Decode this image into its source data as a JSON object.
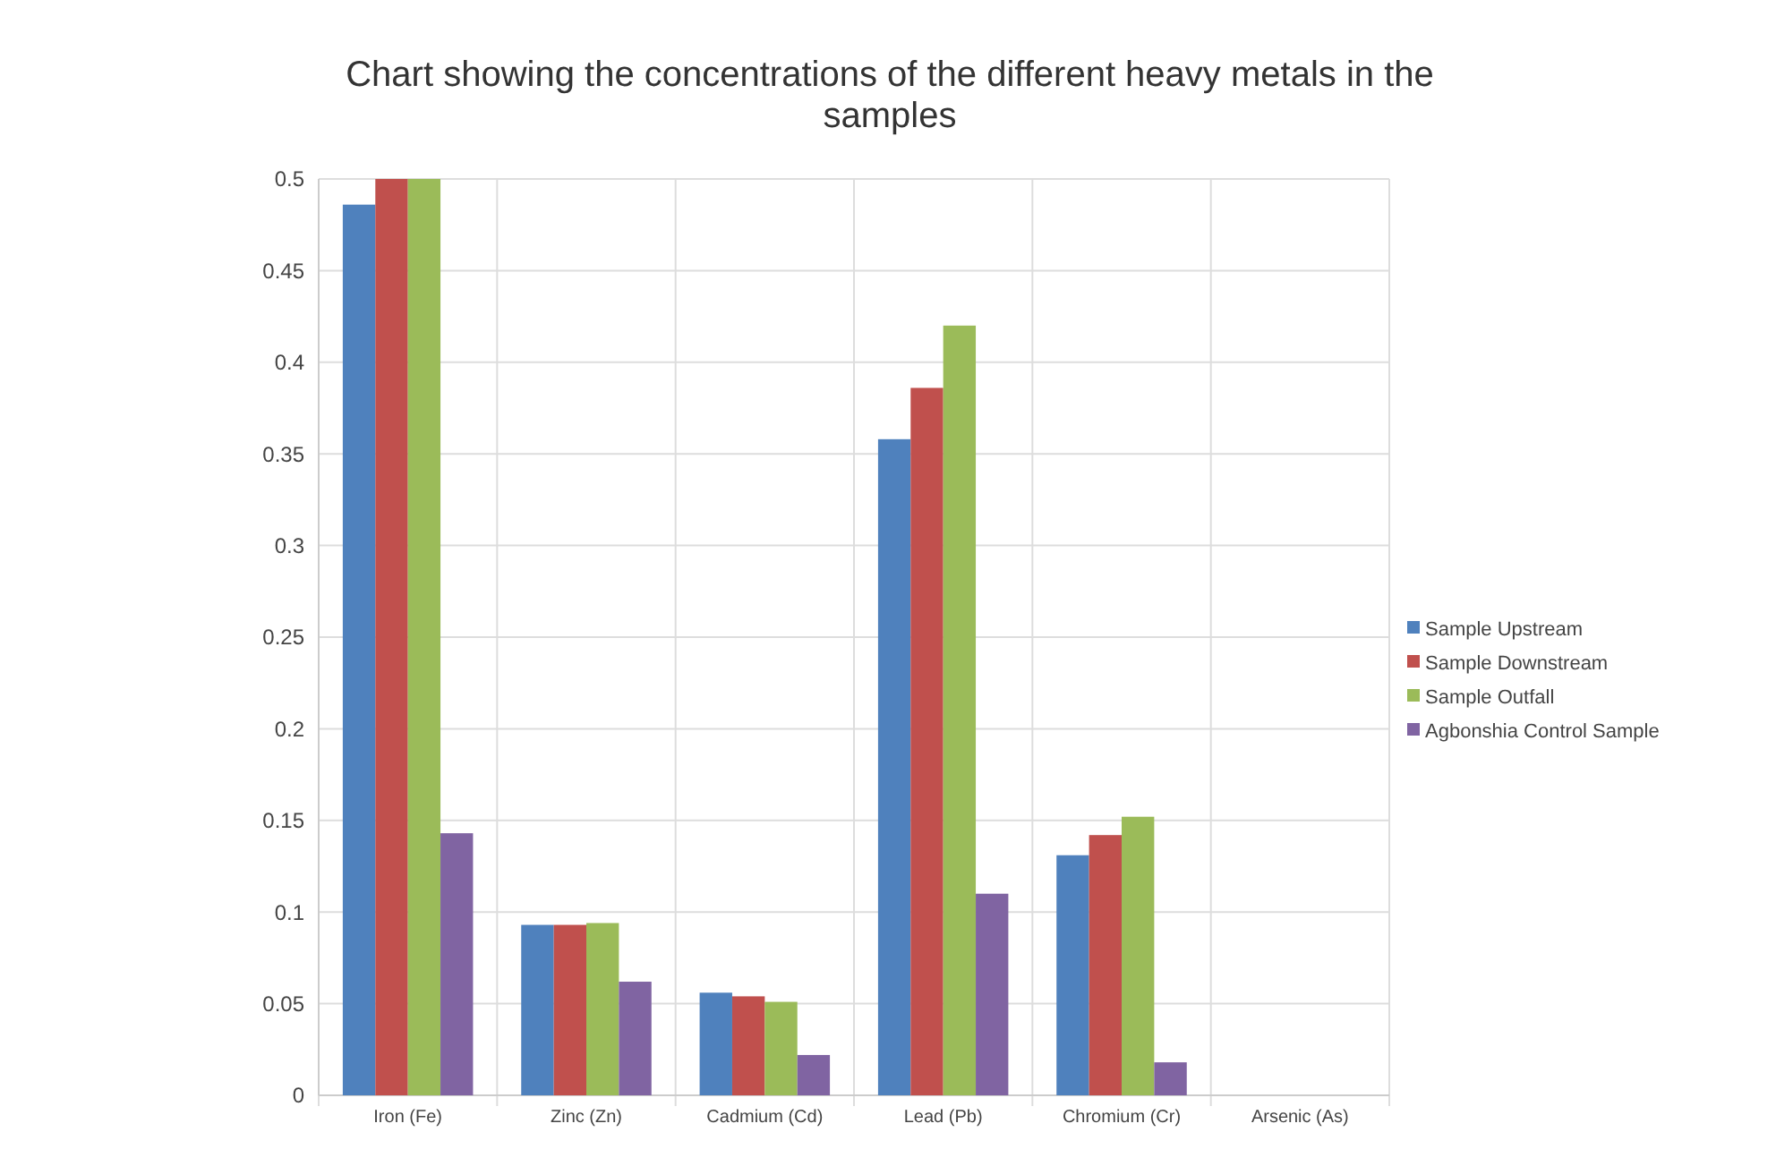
{
  "chart_data": {
    "type": "bar",
    "title": "Chart showing the concentrations of the different heavy metals in the samples",
    "categories": [
      "Iron (Fe)",
      "Zinc (Zn)",
      "Cadmium (Cd)",
      "Lead (Pb)",
      "Chromium (Cr)",
      "Arsenic (As)"
    ],
    "series": [
      {
        "name": "Sample Upstream",
        "color": "#4f81bd",
        "values": [
          0.486,
          0.093,
          0.056,
          0.358,
          0.131,
          0
        ]
      },
      {
        "name": "Sample Downstream",
        "color": "#c0504d",
        "values": [
          0.5,
          0.093,
          0.054,
          0.386,
          0.142,
          0
        ]
      },
      {
        "name": "Sample Outfall",
        "color": "#9bbb59",
        "values": [
          0.5,
          0.094,
          0.051,
          0.42,
          0.152,
          0
        ]
      },
      {
        "name": "Agbonshia Control Sample",
        "color": "#8064a2",
        "values": [
          0.143,
          0.062,
          0.022,
          0.11,
          0.018,
          0
        ]
      }
    ],
    "ylim": [
      0,
      0.5
    ],
    "yticks": [
      0,
      0.05,
      0.1,
      0.15,
      0.2,
      0.25,
      0.3,
      0.35,
      0.4,
      0.45,
      0.5
    ],
    "grid": true,
    "legend": "right"
  }
}
